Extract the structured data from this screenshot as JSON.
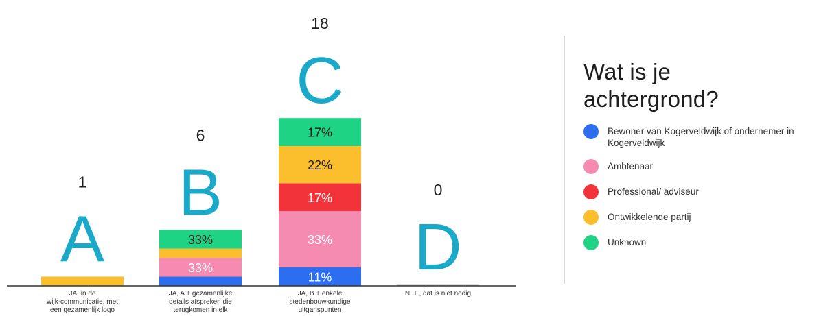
{
  "legend": {
    "title": "Wat is je achtergrond?",
    "items": [
      {
        "label": "Bewoner van Kogerveldwijk of ondernemer in Kogerveldwijk",
        "color": "#2d6ef0"
      },
      {
        "label": "Ambtenaar",
        "color": "#f58bb0"
      },
      {
        "label": "Professional/ adviseur",
        "color": "#f2333a"
      },
      {
        "label": "Ontwikkelende partij",
        "color": "#fbbf2d"
      },
      {
        "label": "Unknown",
        "color": "#1ed384"
      }
    ]
  },
  "chart_data": {
    "type": "bar",
    "stacked": true,
    "categories": [
      {
        "letter": "A",
        "count": 1,
        "label": "JA, in de wijk-communicatie, met een gezamenlijk logo"
      },
      {
        "letter": "B",
        "count": 6,
        "label": "JA, A + gezamenlijke details afspreken die terugkomen in elk"
      },
      {
        "letter": "C",
        "count": 18,
        "label": "JA, B + enkele stedenbouwkundige uitganspunten"
      },
      {
        "letter": "D",
        "count": 0,
        "label": "NEE, dat is niet nodig"
      }
    ],
    "series": [
      {
        "name": "Bewoner van Kogerveldwijk of ondernemer in Kogerveldwijk",
        "color": "#2d6ef0",
        "values": [
          0,
          1,
          2,
          0
        ],
        "labels": [
          "",
          "",
          "11%",
          ""
        ]
      },
      {
        "name": "Ambtenaar",
        "color": "#f58bb0",
        "values": [
          0,
          2,
          6,
          0
        ],
        "labels": [
          "",
          "33%",
          "33%",
          ""
        ]
      },
      {
        "name": "Professional/ adviseur",
        "color": "#f2333a",
        "values": [
          0,
          0,
          3,
          0
        ],
        "labels": [
          "",
          "",
          "17%",
          ""
        ]
      },
      {
        "name": "Ontwikkelende partij",
        "color": "#fbbf2d",
        "values": [
          1,
          1,
          4,
          0
        ],
        "labels": [
          "",
          "",
          "22%",
          ""
        ]
      },
      {
        "name": "Unknown",
        "color": "#1ed384",
        "values": [
          0,
          2,
          3,
          0
        ],
        "labels": [
          "",
          "33%",
          "17%",
          ""
        ]
      }
    ],
    "letter_color": "#1aa9c9",
    "axis_color": "#333333"
  }
}
